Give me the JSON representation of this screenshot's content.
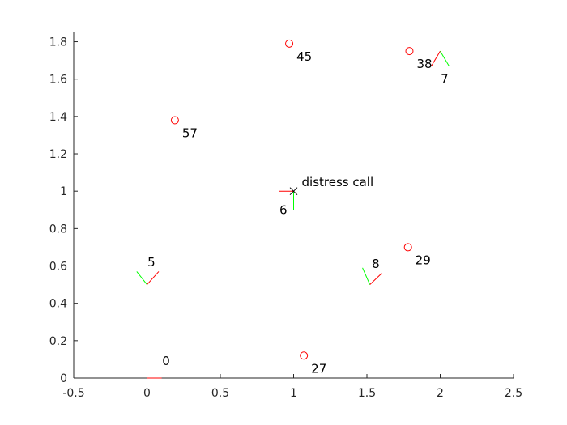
{
  "chart_data": {
    "type": "scatter",
    "title": "",
    "xlabel": "",
    "ylabel": "",
    "xlim": [
      -0.5,
      2.5
    ],
    "ylim": [
      0,
      1.85
    ],
    "grid": false,
    "x_ticks": [
      -0.5,
      0,
      0.5,
      1,
      1.5,
      2,
      2.5
    ],
    "x_tick_labels": [
      "-0.5",
      "0",
      "0.5",
      "1",
      "1.5",
      "2",
      "2.5"
    ],
    "y_ticks": [
      0,
      0.2,
      0.4,
      0.6,
      0.8,
      1,
      1.2,
      1.4,
      1.6,
      1.8
    ],
    "y_tick_labels": [
      "0",
      "0.2",
      "0.4",
      "0.6",
      "0.8",
      "1",
      "1.2",
      "1.4",
      "1.6",
      "1.8"
    ],
    "marker_color": "#ff0000",
    "red_axis_color": "#ff0000",
    "green_axis_color": "#00ff00",
    "distress": {
      "x": 1.0,
      "y": 1.0,
      "label": "distress call",
      "marker": "x",
      "color": "#000000"
    },
    "circles": [
      {
        "x": 0.97,
        "y": 1.79,
        "label": "45"
      },
      {
        "x": 1.79,
        "y": 1.75,
        "label": "38"
      },
      {
        "x": 0.19,
        "y": 1.38,
        "label": "57"
      },
      {
        "x": 1.78,
        "y": 0.7,
        "label": "29"
      },
      {
        "x": 1.07,
        "y": 0.12,
        "label": "27"
      }
    ],
    "frames": [
      {
        "x": 0.0,
        "y": 0.0,
        "red": [
          0.1,
          0.0
        ],
        "green": [
          0.0,
          0.1
        ],
        "label": "0",
        "label_x": 0.13,
        "label_y": 0.09
      },
      {
        "x": 1.0,
        "y": 1.0,
        "red": [
          -0.1,
          0.0
        ],
        "green": [
          0.0,
          -0.1
        ],
        "label": "6",
        "label_x": 0.93,
        "label_y": 0.9
      },
      {
        "x": 2.0,
        "y": 1.75,
        "red": [
          -0.06,
          -0.08
        ],
        "green": [
          0.06,
          -0.08
        ],
        "label": "7",
        "label_x": 2.03,
        "label_y": 1.6
      },
      {
        "x": 1.52,
        "y": 0.5,
        "red": [
          0.08,
          0.06
        ],
        "green": [
          -0.05,
          0.09
        ],
        "label": "8",
        "label_x": 1.56,
        "label_y": 0.61
      },
      {
        "x": 0.0,
        "y": 0.5,
        "red": [
          0.08,
          0.07
        ],
        "green": [
          -0.07,
          0.07
        ],
        "label": "5",
        "label_x": 0.03,
        "label_y": 0.62
      }
    ]
  }
}
